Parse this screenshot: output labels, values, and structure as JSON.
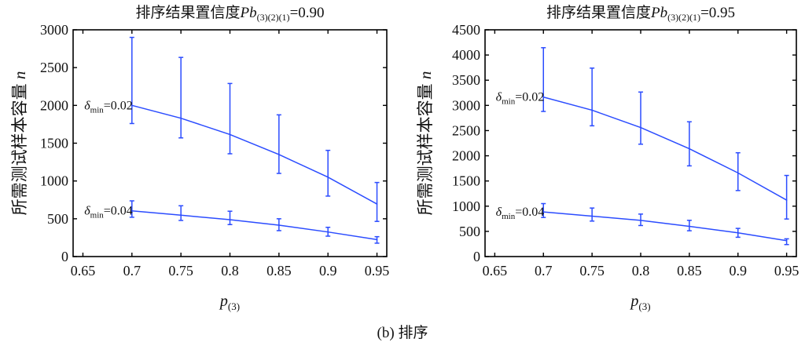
{
  "caption": "(b) 排序",
  "chart_data": [
    {
      "type": "line",
      "title": {
        "prefix": "排序结果置信度",
        "var": "Pb",
        "sub": "(3)(2)(1)",
        "value": "=0.90"
      },
      "xlabel": {
        "var": "p",
        "sub": "(3)"
      },
      "ylabel": {
        "text": "所需测试样本容量 ",
        "var": "n"
      },
      "xlim": [
        0.64,
        0.96
      ],
      "ylim": [
        0,
        3000
      ],
      "xticks": [
        "0.65",
        "0.7",
        "0.75",
        "0.8",
        "0.85",
        "0.9",
        "0.95"
      ],
      "yticks": [
        "0",
        "500",
        "1000",
        "1500",
        "2000",
        "2500",
        "3000"
      ],
      "color": "#2b4cff",
      "series": [
        {
          "label": {
            "sym": "δ",
            "sub": "min",
            "value": "=0.02"
          },
          "x": [
            0.7,
            0.75,
            0.8,
            0.85,
            0.9,
            0.95
          ],
          "y": [
            2000,
            1830,
            1615,
            1350,
            1050,
            695
          ],
          "lower": [
            1760,
            1570,
            1360,
            1100,
            800,
            465
          ],
          "upper": [
            2900,
            2635,
            2290,
            1875,
            1405,
            980
          ]
        },
        {
          "label": {
            "sym": "δ",
            "sub": "min",
            "value": "=0.04"
          },
          "x": [
            0.7,
            0.75,
            0.8,
            0.85,
            0.9,
            0.95
          ],
          "y": [
            605,
            547,
            488,
            415,
            325,
            225
          ],
          "lower": [
            520,
            478,
            423,
            343,
            270,
            177
          ],
          "upper": [
            737,
            672,
            600,
            500,
            387,
            263
          ]
        }
      ]
    },
    {
      "type": "line",
      "title": {
        "prefix": "排序结果置信度",
        "var": "Pb",
        "sub": "(3)(2)(1)",
        "value": "=0.95"
      },
      "xlabel": {
        "var": "p",
        "sub": "(3)"
      },
      "ylabel": {
        "text": "所需测试样本容量 ",
        "var": "n"
      },
      "xlim": [
        0.64,
        0.96
      ],
      "ylim": [
        0,
        4500
      ],
      "xticks": [
        "0.65",
        "0.7",
        "0.75",
        "0.8",
        "0.85",
        "0.9",
        "0.95"
      ],
      "yticks": [
        "0",
        "500",
        "1000",
        "1500",
        "2000",
        "2500",
        "3000",
        "3500",
        "4000",
        "4500"
      ],
      "color": "#2b4cff",
      "series": [
        {
          "label": {
            "sym": "δ",
            "sub": "min",
            "value": "=0.02"
          },
          "x": [
            0.7,
            0.75,
            0.8,
            0.85,
            0.9,
            0.95
          ],
          "y": [
            3165,
            2905,
            2560,
            2140,
            1660,
            1120
          ],
          "lower": [
            2880,
            2595,
            2230,
            1800,
            1310,
            745
          ],
          "upper": [
            4145,
            3740,
            3265,
            2675,
            2060,
            1610
          ]
        },
        {
          "label": {
            "sym": "δ",
            "sub": "min",
            "value": "=0.04"
          },
          "x": [
            0.7,
            0.75,
            0.8,
            0.85,
            0.9,
            0.95
          ],
          "y": [
            885,
            802,
            719,
            600,
            471,
            316
          ],
          "lower": [
            776,
            704,
            616,
            512,
            383,
            238
          ],
          "upper": [
            1051,
            963,
            843,
            719,
            559,
            352
          ]
        }
      ]
    }
  ]
}
